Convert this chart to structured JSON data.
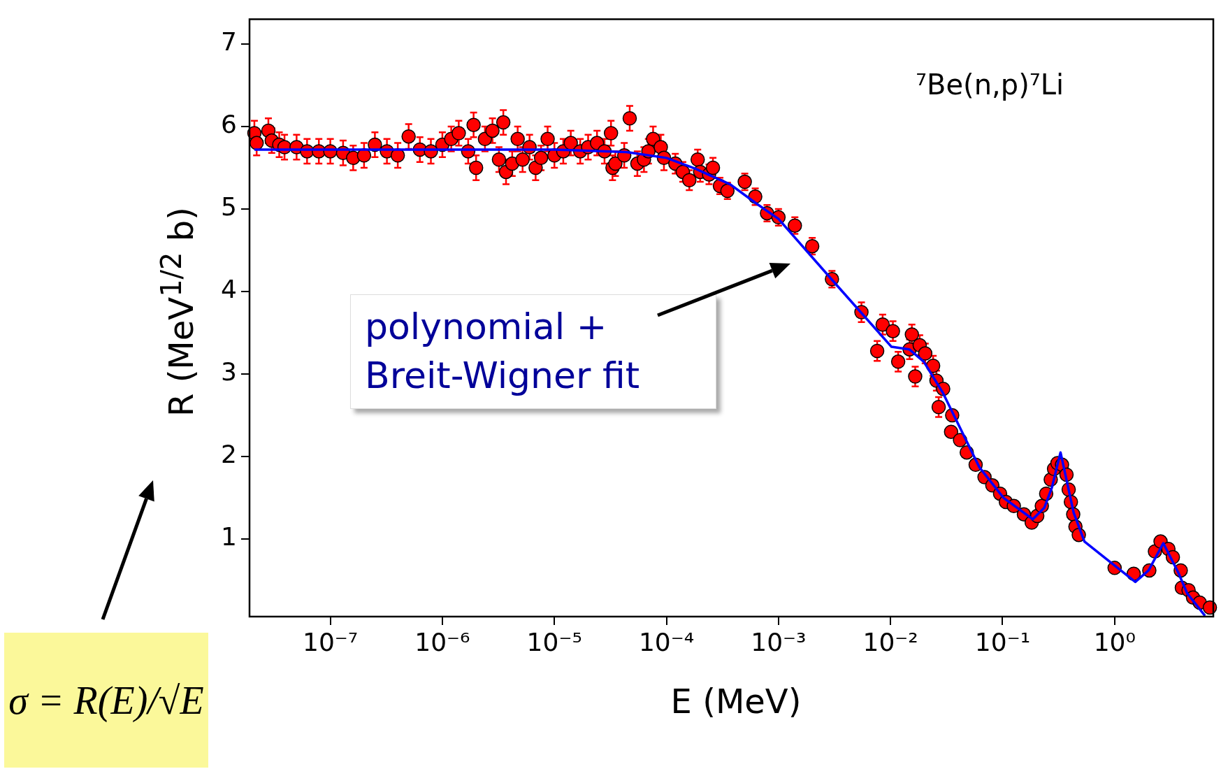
{
  "chart_data": {
    "type": "scatter",
    "title": "⁷Be(n,p)⁷Li",
    "xlabel": "E (MeV)",
    "ylabel": "R  (MeV$^{1/2}$ b)",
    "log": "x",
    "grid": false,
    "legend": false,
    "line_style": "solid",
    "xlim": [
      1.9e-08,
      7.6
    ],
    "ylim": [
      0.06,
      7.3
    ],
    "xticks": [
      {
        "value": 1e-07,
        "label": "10⁻⁷"
      },
      {
        "value": 1e-06,
        "label": "10⁻⁶"
      },
      {
        "value": 1e-05,
        "label": "10⁻⁵"
      },
      {
        "value": 0.0001,
        "label": "10⁻⁴"
      },
      {
        "value": 0.001,
        "label": "10⁻³"
      },
      {
        "value": 0.01,
        "label": "10⁻²"
      },
      {
        "value": 0.1,
        "label": "10⁻¹"
      },
      {
        "value": 1,
        "label": "10⁰"
      }
    ],
    "yticks": [
      1,
      2,
      3,
      4,
      5,
      6,
      7
    ],
    "annotations": [
      "σ = R(E)/√E"
    ],
    "series": [
      {
        "marker": "circle",
        "color": "#ff0000",
        "x": [
          2.1e-08,
          2.2e-08,
          2.8e-08,
          3e-08,
          3.5e-08,
          3.9e-08,
          5e-08,
          6.2e-08,
          7.9e-08,
          1e-07,
          1.3e-07,
          1.6e-07,
          2e-07,
          2.5e-07,
          3.2e-07,
          4e-07,
          5e-07,
          6.3e-07,
          7.9e-07,
          1e-06,
          1.2e-06,
          1.4e-06,
          1.7e-06,
          1.9e-06,
          2e-06,
          2.4e-06,
          2.8e-06,
          3.2e-06,
          3.5e-06,
          3.7e-06,
          4.2e-06,
          4.7e-06,
          5.2e-06,
          6e-06,
          6.8e-06,
          7.6e-06,
          8.7e-06,
          1e-05,
          1.2e-05,
          1.4e-05,
          1.7e-05,
          2e-05,
          2.4e-05,
          2.8e-05,
          3.2e-05,
          3.3e-05,
          3.5e-05,
          4.2e-05,
          4.7e-05,
          5.5e-05,
          6.3e-05,
          6.9e-05,
          7.6e-05,
          8.9e-05,
          9.5e-05,
          0.00012,
          0.00014,
          0.00016,
          0.00019,
          0.0002,
          0.00024,
          0.00026,
          0.0003,
          0.00035,
          0.0005,
          0.00062,
          0.00079,
          0.001,
          0.0014,
          0.002,
          0.003,
          0.0055,
          0.0076,
          0.0085,
          0.0105,
          0.0117,
          0.0148,
          0.0155,
          0.0166,
          0.0182,
          0.0204,
          0.024,
          0.0257,
          0.0269,
          0.0295,
          0.0347,
          0.0355,
          0.0417,
          0.0479,
          0.0575,
          0.069,
          0.081,
          0.095,
          0.107,
          0.126,
          0.155,
          0.182,
          0.204,
          0.224,
          0.245,
          0.269,
          0.288,
          0.309,
          0.339,
          0.372,
          0.389,
          0.407,
          0.427,
          0.447,
          0.479,
          1.0,
          1.48,
          2.04,
          2.29,
          2.57,
          3.02,
          3.31,
          3.89,
          3.98,
          4.57,
          5.01,
          5.75,
          7.08
        ],
        "values": [
          5.92,
          5.8,
          5.95,
          5.83,
          5.78,
          5.75,
          5.75,
          5.7,
          5.7,
          5.7,
          5.68,
          5.62,
          5.65,
          5.78,
          5.7,
          5.65,
          5.88,
          5.72,
          5.7,
          5.78,
          5.85,
          5.92,
          5.7,
          6.02,
          5.5,
          5.85,
          5.95,
          5.6,
          6.05,
          5.45,
          5.55,
          5.85,
          5.6,
          5.75,
          5.5,
          5.62,
          5.85,
          5.65,
          5.7,
          5.8,
          5.7,
          5.75,
          5.8,
          5.7,
          5.92,
          5.5,
          5.55,
          5.65,
          6.1,
          5.55,
          5.6,
          5.7,
          5.85,
          5.75,
          5.62,
          5.55,
          5.45,
          5.35,
          5.6,
          5.45,
          5.42,
          5.5,
          5.28,
          5.22,
          5.33,
          5.15,
          4.95,
          4.9,
          4.8,
          4.55,
          4.15,
          3.75,
          3.28,
          3.6,
          3.52,
          3.15,
          3.3,
          3.48,
          2.97,
          3.35,
          3.25,
          3.1,
          2.92,
          2.6,
          2.82,
          2.3,
          2.5,
          2.2,
          2.05,
          1.9,
          1.75,
          1.65,
          1.55,
          1.45,
          1.4,
          1.3,
          1.2,
          1.28,
          1.4,
          1.55,
          1.72,
          1.85,
          1.92,
          1.9,
          1.78,
          1.6,
          1.45,
          1.3,
          1.15,
          1.05,
          0.65,
          0.58,
          0.62,
          0.85,
          0.97,
          0.88,
          0.78,
          0.62,
          0.41,
          0.38,
          0.29,
          0.23,
          0.17
        ],
        "errors": [
          0.15,
          0.15,
          0.15,
          0.15,
          0.15,
          0.15,
          0.15,
          0.15,
          0.15,
          0.15,
          0.15,
          0.15,
          0.15,
          0.15,
          0.15,
          0.15,
          0.15,
          0.15,
          0.15,
          0.15,
          0.15,
          0.15,
          0.15,
          0.15,
          0.15,
          0.15,
          0.15,
          0.15,
          0.15,
          0.15,
          0.15,
          0.15,
          0.15,
          0.15,
          0.15,
          0.15,
          0.15,
          0.15,
          0.15,
          0.15,
          0.15,
          0.15,
          0.15,
          0.15,
          0.15,
          0.15,
          0.15,
          0.15,
          0.15,
          0.15,
          0.15,
          0.15,
          0.15,
          0.15,
          0.15,
          0.12,
          0.12,
          0.12,
          0.12,
          0.12,
          0.12,
          0.12,
          0.1,
          0.1,
          0.1,
          0.1,
          0.1,
          0.1,
          0.1,
          0.1,
          0.1,
          0.12,
          0.12,
          0.12,
          0.12,
          0.12,
          0.12,
          0.12,
          0.12,
          0.12,
          0.12,
          0.12,
          0.12,
          0.12,
          null,
          null,
          null,
          null,
          null,
          null,
          null,
          null,
          null,
          null,
          null,
          null,
          null,
          null,
          null,
          null,
          null,
          null,
          null,
          null,
          null,
          null,
          null,
          null,
          null,
          null,
          null,
          null,
          null,
          null,
          null,
          null,
          null,
          null,
          null,
          null,
          null,
          null,
          null
        ]
      },
      {
        "type": "line",
        "marker": "none",
        "name": "polynomial + Breit-Wigner fit",
        "color": "#0000ff",
        "x": [
          2.1e-08,
          1e-06,
          1e-05,
          4.4e-05,
          0.0001,
          0.00018,
          0.00037,
          0.00063,
          0.001,
          0.0032,
          0.0102,
          0.0147,
          0.0198,
          0.0294,
          0.0621,
          0.102,
          0.186,
          0.236,
          0.275,
          0.329,
          0.431,
          0.538,
          0.789,
          1.53,
          2.01,
          2.72,
          3.68,
          4.45,
          6.41
        ],
        "values": [
          5.72,
          5.72,
          5.72,
          5.69,
          5.62,
          5.49,
          5.3,
          5.07,
          4.88,
          4.1,
          3.33,
          3.3,
          3.15,
          2.77,
          1.87,
          1.5,
          1.24,
          1.38,
          1.62,
          2.05,
          1.32,
          0.97,
          0.79,
          0.48,
          0.62,
          0.95,
          0.6,
          0.34,
          0.07
        ]
      }
    ]
  }
}
